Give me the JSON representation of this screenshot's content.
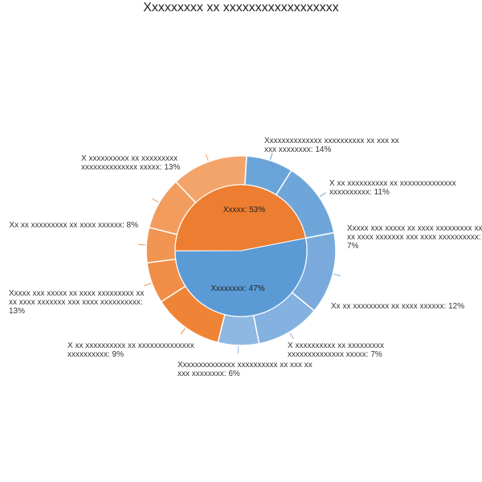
{
  "chart_data": {
    "type": "pie",
    "subtype": "sunburst",
    "title": "Xxxxxxxxx xx xxxxxxxxxxxxxxxxxx",
    "legend": "none",
    "inner": [
      {
        "label": "Xxxxx: 53%",
        "value": 53,
        "color": "#5b9bd5"
      },
      {
        "label": "Xxxxxxxx: 47%",
        "value": 47,
        "color": "#ed7d31"
      }
    ],
    "outer": [
      {
        "parent": 0,
        "value": 14,
        "label": "Xxxxxxxxxxxxxx xxxxxxxxxx xx xxx xx xxx xxxxxxxx: 14%",
        "color": "#7aaadb"
      },
      {
        "parent": 0,
        "value": 11,
        "label": "X xx xxxxxxxxxx xx xxxxxxxxxxxxxx xxxxxxxxxx: 11%",
        "color": "#84b1df"
      },
      {
        "parent": 0,
        "value": 7,
        "label": "Xxxxx xxx xxxxx xx xxxx xxxxxxxxx xx xx xxxx xxxxxxx xxx xxxx xxxxxxxxxx: 7%",
        "color": "#8eb8e2"
      },
      {
        "parent": 1,
        "value": 12,
        "label": "Xx xx xxxxxxxxx xx xxxx xxxxxx: 12%",
        "color": "#ef8436"
      },
      {
        "parent": 1,
        "value": 7,
        "label": "X xxxxxxxxxx xx xxxxxxxxx xxxxxxxxxxxxxx xxxxx: 7%",
        "color": "#f08d46"
      },
      {
        "parent": 1,
        "value": 6,
        "label": "Xxxxxxxxxxxxxx xxxxxxxxxx xx xxx xx xxx xxxxxxxx: 6%",
        "color": "#f19552"
      },
      {
        "parent": 1,
        "value": 9,
        "label": "X xx xxxxxxxxxx xx xxxxxxxxxxxxxx xxxxxxxxxx: 9%",
        "color": "#f29c5e"
      },
      {
        "parent": 1,
        "value": 13,
        "label": "Xxxxx xxx xxxxx xx xxxx xxxxxxxxx xx xx xxxx xxxxxxx xxx xxxx xxxxxxxxxx: 13%",
        "color": "#f3a46a"
      },
      {
        "parent": 0,
        "value": 8,
        "label": "Xx xx xxxxxxxxx xx xxxx xxxxxx: 8%",
        "color": "#6aa3d8"
      },
      {
        "parent": 0,
        "value": 13,
        "label": "X xxxxxxxxxx xx xxxxxxxxx xxxxxxxxxxxxxx xxxxx: 13%",
        "color": "#6fa6d9"
      }
    ]
  }
}
